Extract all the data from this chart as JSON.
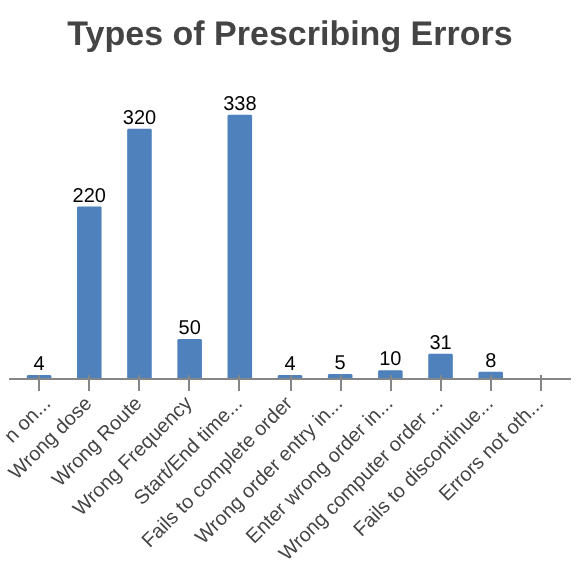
{
  "chart_data": {
    "type": "bar",
    "title": "Types of Prescribing Errors",
    "categories": [
      "n on...",
      "Wrong dose",
      "Wrong Route",
      "Wrong Frequency",
      "Start/End time...",
      "Fails to complete order",
      "Wrong order entry in...",
      "Enter wrong order in...",
      "Wrong computer order ...",
      "Fails to discontinue...",
      "Errors not oth..."
    ],
    "values": [
      4,
      220,
      320,
      50,
      338,
      4,
      5,
      10,
      31,
      8,
      null
    ],
    "color": "#4f81bd",
    "data_labels": true
  }
}
